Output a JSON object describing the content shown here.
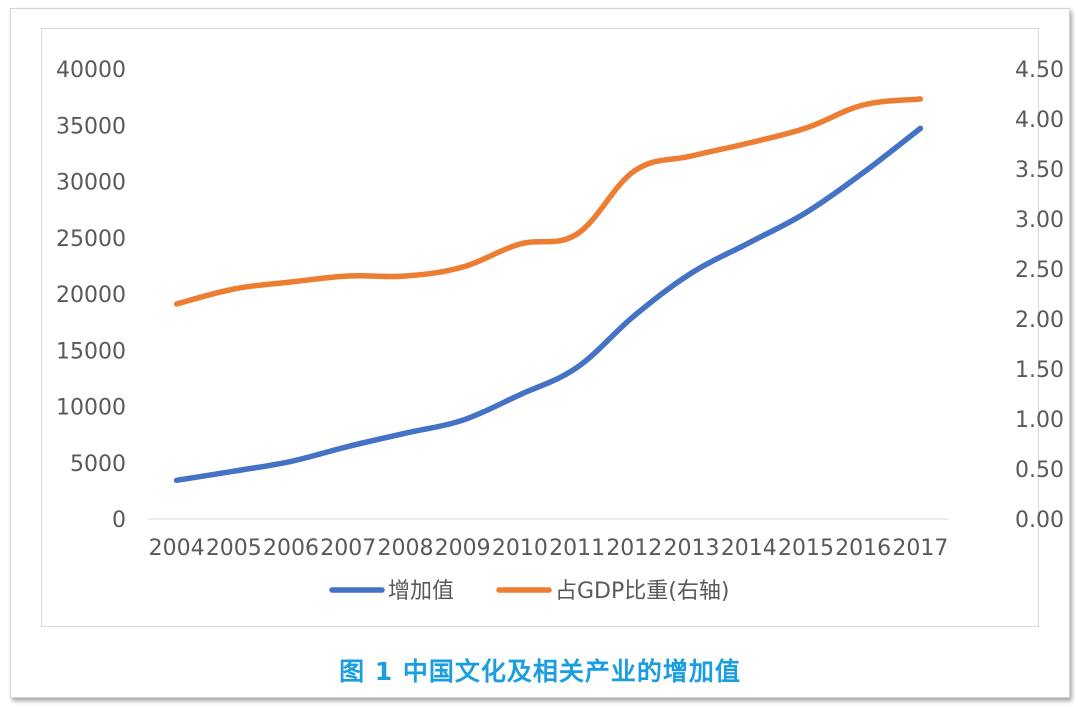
{
  "caption": "图 1 中国文化及相关产业的增加值",
  "chart_data": {
    "type": "line",
    "categories": [
      "2004",
      "2005",
      "2006",
      "2007",
      "2008",
      "2009",
      "2010",
      "2011",
      "2012",
      "2013",
      "2014",
      "2015",
      "2016",
      "2017"
    ],
    "series": [
      {
        "name": "增加值",
        "axis": "left",
        "color": "#4472c4",
        "values": [
          3440,
          4253,
          5123,
          6455,
          7630,
          8786,
          11052,
          13479,
          18071,
          21870,
          24538,
          27235,
          30785,
          34722
        ]
      },
      {
        "name": "占GDP比重(右轴)",
        "axis": "right",
        "color": "#ed7d31",
        "values": [
          2.15,
          2.3,
          2.37,
          2.43,
          2.43,
          2.52,
          2.75,
          2.85,
          3.48,
          3.63,
          3.76,
          3.91,
          4.14,
          4.2
        ]
      }
    ],
    "y_left": {
      "min": 0,
      "max": 40000,
      "ticks": [
        "0",
        "5000",
        "10000",
        "15000",
        "20000",
        "25000",
        "30000",
        "35000",
        "40000"
      ]
    },
    "y_right": {
      "min": 0,
      "max": 4.5,
      "ticks": [
        "0.00",
        "0.50",
        "1.00",
        "1.50",
        "2.00",
        "2.50",
        "3.00",
        "3.50",
        "4.00",
        "4.50"
      ]
    },
    "grid": false,
    "legend_position": "bottom"
  }
}
